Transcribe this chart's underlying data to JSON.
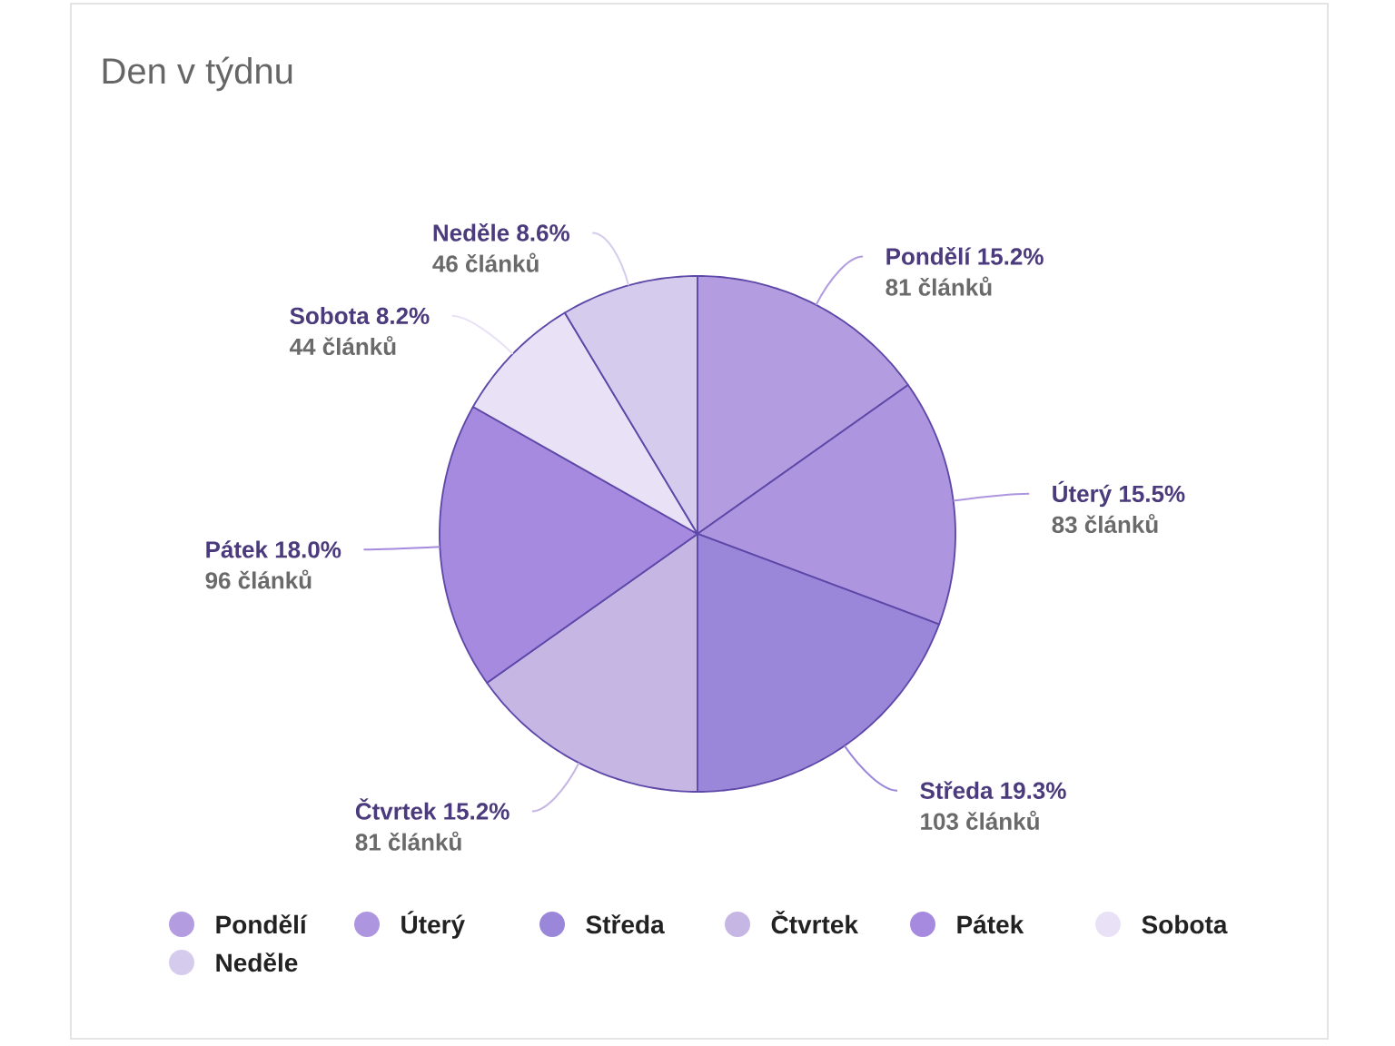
{
  "chart_data": {
    "type": "pie",
    "title": "Den v týdnu",
    "categories": [
      "Pondělí",
      "Úterý",
      "Středa",
      "Čtvrtek",
      "Pátek",
      "Sobota",
      "Neděle"
    ],
    "values": [
      15.2,
      15.5,
      19.3,
      15.2,
      18.0,
      8.2,
      8.6
    ],
    "colors": [
      "#b39ce0",
      "#ad95df",
      "#9b87da",
      "#c5b6e4",
      "#a58ae0",
      "#e9e1f5",
      "#d5cbec"
    ],
    "value_labels": [
      "15.2%",
      "15.5%",
      "19.3%",
      "15.2%",
      "18.0%",
      "8.2%",
      "8.6%"
    ],
    "annotations": [
      "81 článků",
      "83 článků",
      "103 článků",
      "81 článků",
      "96 článků",
      "44 článků",
      "46 článků"
    ],
    "legend": "bottom"
  }
}
